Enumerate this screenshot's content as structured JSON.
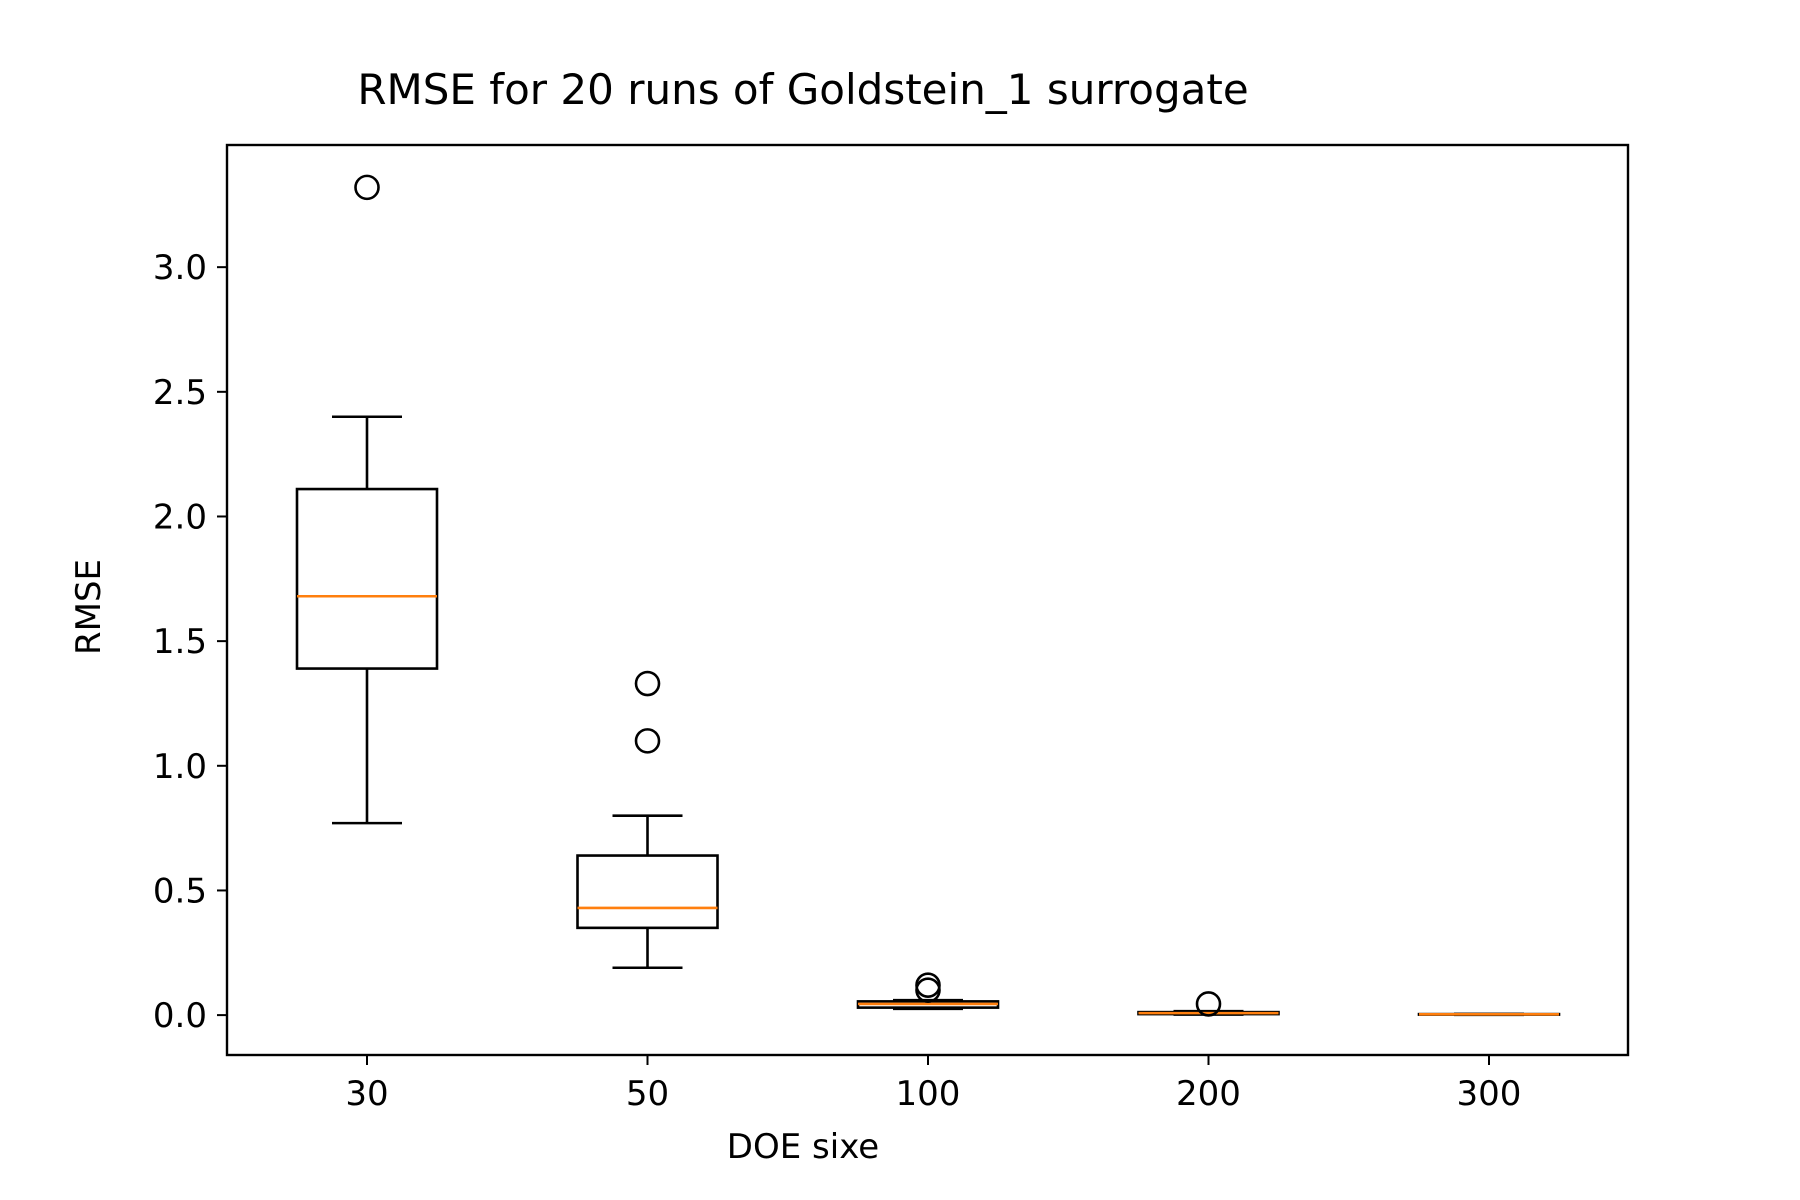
{
  "chart_data": {
    "type": "box",
    "title": "RMSE for 20 runs of Goldstein_1 surrogate",
    "xlabel": "DOE sixe",
    "ylabel": "RMSE",
    "categories": [
      "30",
      "50",
      "100",
      "200",
      "300"
    ],
    "ylim": [
      -0.16,
      3.49
    ],
    "yticks": [
      0.0,
      0.5,
      1.0,
      1.5,
      2.0,
      2.5,
      3.0
    ],
    "ytick_labels": [
      "0.0",
      "0.5",
      "1.0",
      "1.5",
      "2.0",
      "2.5",
      "3.0"
    ],
    "grid": false,
    "median_color": "#ff7f0e",
    "box_color": "#000000",
    "boxes": [
      {
        "category": "30",
        "whislo": 0.77,
        "q1": 1.39,
        "med": 1.68,
        "q3": 2.11,
        "whishi": 2.4,
        "fliers": [
          3.32
        ]
      },
      {
        "category": "50",
        "whislo": 0.19,
        "q1": 0.35,
        "med": 0.43,
        "q3": 0.64,
        "whishi": 0.8,
        "fliers": [
          1.1,
          1.33
        ]
      },
      {
        "category": "100",
        "whislo": 0.025,
        "q1": 0.03,
        "med": 0.045,
        "q3": 0.055,
        "whishi": 0.06,
        "fliers": [
          0.1,
          0.12
        ]
      },
      {
        "category": "200",
        "whislo": 0.002,
        "q1": 0.004,
        "med": 0.008,
        "q3": 0.012,
        "whishi": 0.016,
        "fliers": [
          0.045
        ]
      },
      {
        "category": "300",
        "whislo": 0.001,
        "q1": 0.002,
        "med": 0.003,
        "q3": 0.004,
        "whishi": 0.005,
        "fliers": []
      }
    ]
  }
}
